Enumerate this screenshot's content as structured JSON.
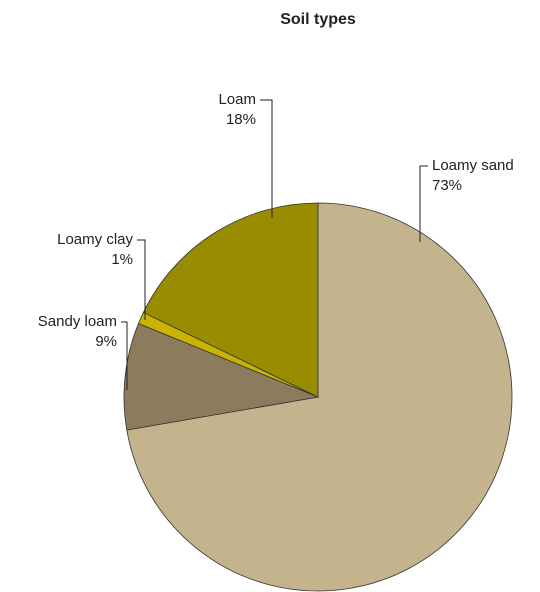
{
  "chart_data": {
    "type": "pie",
    "title": "Soil types",
    "categories": [
      "Loamy sand",
      "Sandy loam",
      "Loamy clay",
      "Loam"
    ],
    "values": [
      73,
      9,
      1,
      18
    ],
    "value_labels": [
      "73%",
      "9%",
      "1%",
      "18%"
    ],
    "colors": [
      "#c4b48d",
      "#8c7b5d",
      "#c8b400",
      "#9a8c00"
    ]
  }
}
